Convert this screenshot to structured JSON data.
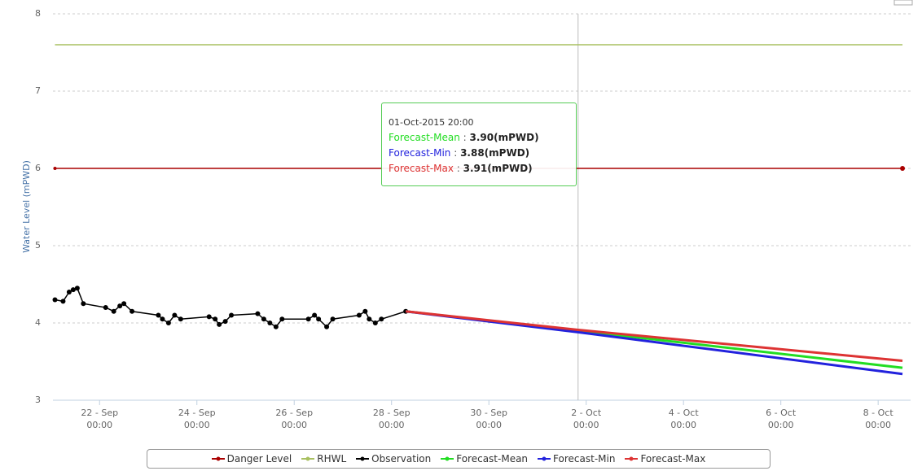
{
  "chart_data": {
    "type": "line",
    "y_label": "Water Level (mPWD)",
    "ylim": [
      3,
      8
    ],
    "yticks": [
      3,
      4,
      5,
      6,
      7,
      8
    ],
    "grid": true,
    "xlim": [
      "2015-09-21T01:00",
      "2015-10-08T16:00"
    ],
    "xticks": [
      {
        "value": "2015-09-22T00:00",
        "label": "22 - Sep\n00:00"
      },
      {
        "value": "2015-09-24T00:00",
        "label": "24 - Sep\n00:00"
      },
      {
        "value": "2015-09-26T00:00",
        "label": "26 - Sep\n00:00"
      },
      {
        "value": "2015-09-28T00:00",
        "label": "28 - Sep\n00:00"
      },
      {
        "value": "2015-09-30T00:00",
        "label": "30 - Sep\n00:00"
      },
      {
        "value": "2015-10-02T00:00",
        "label": "2 - Oct\n00:00"
      },
      {
        "value": "2015-10-04T00:00",
        "label": "4 - Oct\n00:00"
      },
      {
        "value": "2015-10-06T00:00",
        "label": "6 - Oct\n00:00"
      },
      {
        "value": "2015-10-08T00:00",
        "label": "8 - Oct\n00:00"
      }
    ],
    "series": [
      {
        "name": "Danger Level",
        "color": "#aa0000",
        "markers": true,
        "x": [
          "2015-09-21T02:00",
          "2015-10-08T12:00"
        ],
        "values": [
          6,
          6
        ]
      },
      {
        "name": "RHWL",
        "color": "#a8c060",
        "markers": false,
        "x": [
          "2015-09-21T02:00",
          "2015-10-08T12:00"
        ],
        "values": [
          7.6,
          7.6
        ]
      },
      {
        "name": "Observation",
        "color": "#000000",
        "markers": true,
        "x": [
          "2015-09-21T02:00",
          "2015-09-21T06:00",
          "2015-09-21T09:00",
          "2015-09-21T11:00",
          "2015-09-21T13:00",
          "2015-09-21T16:00",
          "2015-09-22T03:00",
          "2015-09-22T07:00",
          "2015-09-22T10:00",
          "2015-09-22T12:00",
          "2015-09-22T16:00",
          "2015-09-23T05:00",
          "2015-09-23T07:00",
          "2015-09-23T10:00",
          "2015-09-23T13:00",
          "2015-09-23T16:00",
          "2015-09-24T06:00",
          "2015-09-24T09:00",
          "2015-09-24T11:00",
          "2015-09-24T14:00",
          "2015-09-24T17:00",
          "2015-09-25T06:00",
          "2015-09-25T09:00",
          "2015-09-25T12:00",
          "2015-09-25T15:00",
          "2015-09-25T18:00",
          "2015-09-26T07:00",
          "2015-09-26T10:00",
          "2015-09-26T12:00",
          "2015-09-26T16:00",
          "2015-09-26T19:00",
          "2015-09-27T08:00",
          "2015-09-27T11:00",
          "2015-09-27T13:00",
          "2015-09-27T16:00",
          "2015-09-27T19:00",
          "2015-09-28T07:00"
        ],
        "values": [
          4.3,
          4.28,
          4.4,
          4.43,
          4.45,
          4.25,
          4.2,
          4.15,
          4.22,
          4.25,
          4.15,
          4.1,
          4.05,
          4.0,
          4.1,
          4.05,
          4.08,
          4.05,
          3.98,
          4.02,
          4.1,
          4.12,
          4.05,
          4.0,
          3.95,
          4.05,
          4.05,
          4.1,
          4.05,
          3.95,
          4.05,
          4.1,
          4.15,
          4.05,
          4.0,
          4.05,
          4.15
        ]
      },
      {
        "name": "Forecast-Mean",
        "color": "#22dd22",
        "markers": false,
        "x": [
          "2015-09-28T07:00",
          "2015-10-01T20:00",
          "2015-10-08T12:00"
        ],
        "values": [
          4.15,
          3.9,
          3.42
        ]
      },
      {
        "name": "Forecast-Min",
        "color": "#2222dd",
        "markers": false,
        "x": [
          "2015-09-28T07:00",
          "2015-10-01T20:00",
          "2015-10-08T12:00"
        ],
        "values": [
          4.15,
          3.88,
          3.34
        ]
      },
      {
        "name": "Forecast-Max",
        "color": "#dd3333",
        "markers": false,
        "x": [
          "2015-09-28T07:00",
          "2015-10-01T20:00",
          "2015-10-08T12:00"
        ],
        "values": [
          4.15,
          3.91,
          3.51
        ]
      }
    ],
    "tooltip": {
      "title": "01-Oct-2015 20:00",
      "items": [
        {
          "name": "Forecast-Mean",
          "value": "3.90(mPWD)"
        },
        {
          "name": "Forecast-Min",
          "value": "3.88(mPWD)"
        },
        {
          "name": "Forecast-Max",
          "value": "3.91(mPWD)"
        }
      ]
    }
  }
}
